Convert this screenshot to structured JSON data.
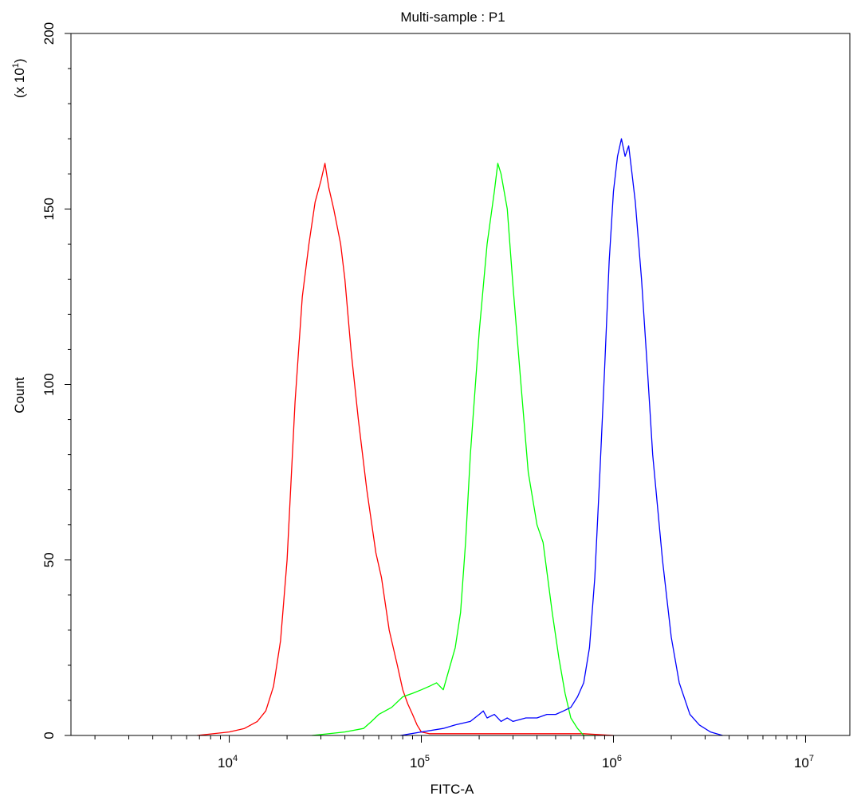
{
  "chart_data": {
    "type": "line",
    "title": "Multi-sample : P1",
    "xlabel": "FITC-A",
    "ylabel": "Count",
    "y_multiplier_label": "(x 10",
    "y_multiplier_exp": "1",
    "y_multiplier_close": ")",
    "x_scale": "log",
    "xlim": [
      1500,
      17000000
    ],
    "ylim": [
      0,
      200
    ],
    "grid": false,
    "legend": "none",
    "x_ticks": [
      {
        "value": 10000,
        "base": "10",
        "exp": "4"
      },
      {
        "value": 100000,
        "base": "10",
        "exp": "5"
      },
      {
        "value": 1000000,
        "base": "10",
        "exp": "6"
      },
      {
        "value": 10000000,
        "base": "10",
        "exp": "7"
      }
    ],
    "y_ticks": [
      {
        "value": 0,
        "label": "0"
      },
      {
        "value": 50,
        "label": "50"
      },
      {
        "value": 100,
        "label": "100"
      },
      {
        "value": 150,
        "label": "150"
      },
      {
        "value": 200,
        "label": "200"
      }
    ],
    "series": [
      {
        "color": "#ff0000",
        "x": [
          6800,
          10000,
          12000,
          14000,
          15500,
          17000,
          18500,
          20000,
          22000,
          24000,
          26000,
          28000,
          30000,
          31500,
          33000,
          35000,
          38000,
          40000,
          43000,
          47000,
          52000,
          58000,
          62000,
          68000,
          75000,
          80000,
          85000,
          90000,
          95000,
          100000,
          110000,
          130000,
          160000,
          200000,
          300000,
          500000,
          700000,
          1000000
        ],
        "y": [
          0,
          1,
          2,
          4,
          7,
          14,
          27,
          50,
          95,
          125,
          140,
          152,
          158,
          163,
          156,
          150,
          140,
          130,
          110,
          90,
          70,
          52,
          45,
          30,
          20,
          13,
          9,
          6,
          3,
          1,
          0.5,
          0.5,
          0.5,
          0.5,
          0.5,
          0.5,
          0.5,
          0
        ]
      },
      {
        "color": "#00ff00",
        "x": [
          27000,
          40000,
          50000,
          55000,
          60000,
          70000,
          80000,
          90000,
          100000,
          110000,
          120000,
          130000,
          150000,
          160000,
          170000,
          180000,
          200000,
          220000,
          240000,
          250000,
          260000,
          280000,
          300000,
          330000,
          360000,
          400000,
          430000,
          480000,
          520000,
          560000,
          600000,
          650000,
          700000,
          800000
        ],
        "y": [
          0,
          1,
          2,
          4,
          6,
          8,
          11,
          12,
          13,
          14,
          15,
          13,
          25,
          35,
          55,
          80,
          115,
          140,
          155,
          163,
          160,
          150,
          128,
          100,
          75,
          60,
          55,
          35,
          22,
          12,
          5,
          2,
          0,
          0
        ]
      },
      {
        "color": "#0000ff",
        "x": [
          78000,
          100000,
          130000,
          150000,
          180000,
          200000,
          210000,
          220000,
          240000,
          260000,
          280000,
          300000,
          350000,
          400000,
          450000,
          500000,
          550000,
          600000,
          650000,
          700000,
          750000,
          800000,
          850000,
          900000,
          950000,
          1000000,
          1050000,
          1100000,
          1150000,
          1200000,
          1250000,
          1300000,
          1400000,
          1500000,
          1600000,
          1800000,
          2000000,
          2200000,
          2500000,
          2800000,
          3200000,
          3700000
        ],
        "y": [
          0,
          1,
          2,
          3,
          4,
          6,
          7,
          5,
          6,
          4,
          5,
          4,
          5,
          5,
          6,
          6,
          7,
          8,
          11,
          15,
          25,
          45,
          75,
          105,
          135,
          155,
          165,
          170,
          165,
          168,
          160,
          152,
          130,
          105,
          80,
          50,
          28,
          15,
          6,
          3,
          1,
          0
        ]
      }
    ]
  }
}
